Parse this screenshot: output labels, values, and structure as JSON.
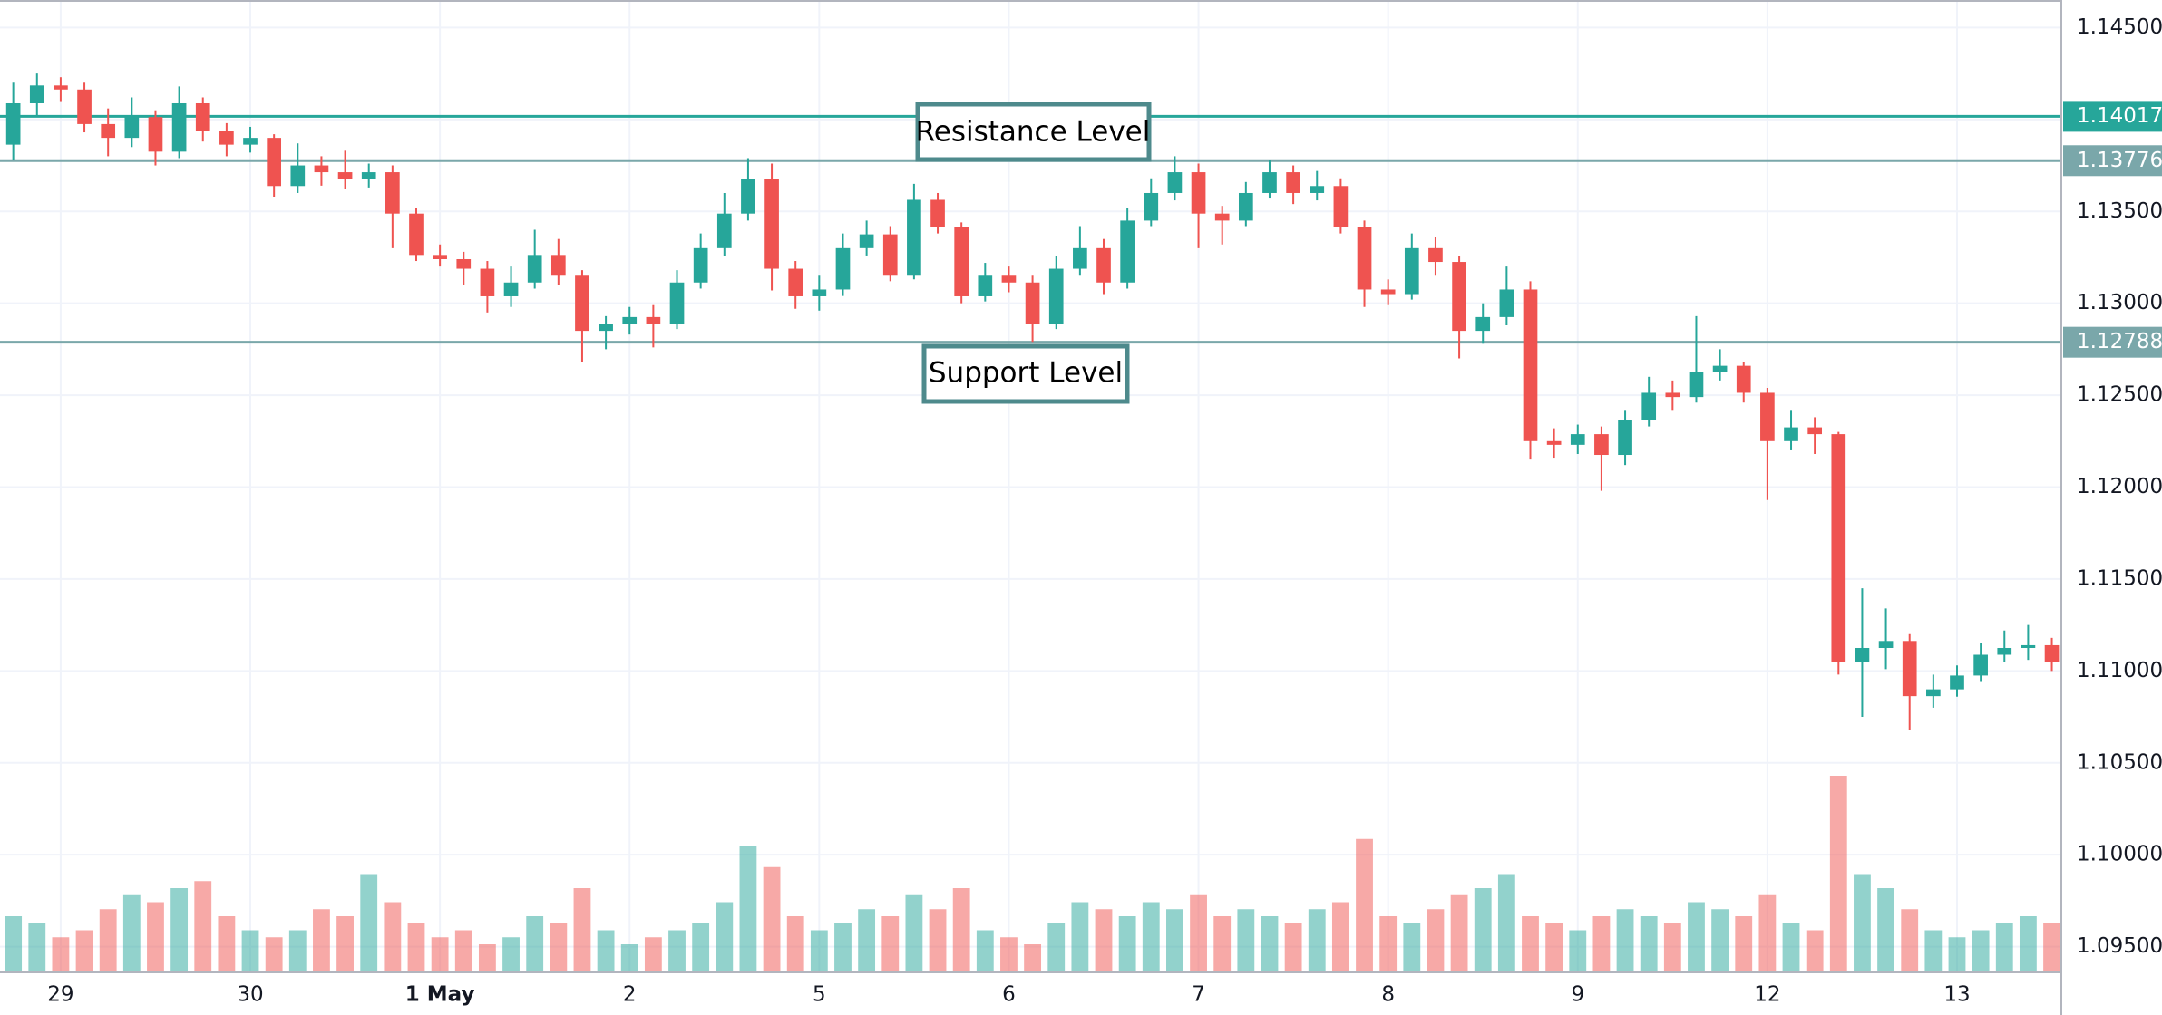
{
  "chart_data": {
    "type": "candlestick",
    "x": [
      -0.25,
      -0.125,
      0,
      0.125,
      0.25,
      0.375,
      0.5,
      0.625,
      0.75,
      0.875,
      1,
      1.125,
      1.25,
      1.375,
      1.5,
      1.625,
      1.75,
      1.875,
      2,
      2.125,
      2.25,
      2.375,
      2.5,
      2.625,
      2.75,
      2.875,
      3,
      3.125,
      3.25,
      3.375,
      3.5,
      3.625,
      3.75,
      3.875,
      4,
      4.125,
      4.25,
      4.375,
      4.5,
      4.625,
      4.75,
      4.875,
      5,
      5.125,
      5.25,
      5.375,
      5.5,
      5.625,
      5.75,
      5.875,
      6,
      6.125,
      6.25,
      6.375,
      6.5,
      6.625,
      6.75,
      6.875,
      7,
      7.125,
      7.25,
      7.375,
      7.5,
      7.625,
      7.75,
      7.875,
      8,
      8.125,
      8.25,
      8.375,
      8.5,
      8.625,
      8.75,
      8.875,
      9,
      9.125,
      9.25,
      9.375,
      9.5,
      9.625,
      9.75,
      9.875,
      10,
      10.125,
      10.25,
      10.375,
      10.5
    ],
    "open": [
      1.13863,
      1.14088,
      1.14185,
      1.14163,
      1.13975,
      1.139,
      1.14013,
      1.13825,
      1.14088,
      1.13938,
      1.13863,
      1.139,
      1.13638,
      1.1375,
      1.13713,
      1.13675,
      1.13713,
      1.13488,
      1.13263,
      1.1324,
      1.13188,
      1.13038,
      1.13113,
      1.13263,
      1.1315,
      1.1285,
      1.12888,
      1.12925,
      1.12888,
      1.13113,
      1.133,
      1.13488,
      1.13675,
      1.13188,
      1.13038,
      1.13075,
      1.133,
      1.13375,
      1.1315,
      1.13563,
      1.13413,
      1.13038,
      1.1315,
      1.13113,
      1.12888,
      1.13188,
      1.133,
      1.13113,
      1.1345,
      1.136,
      1.13713,
      1.13488,
      1.1345,
      1.136,
      1.13713,
      1.136,
      1.13638,
      1.13413,
      1.13075,
      1.1305,
      1.133,
      1.13225,
      1.1285,
      1.12925,
      1.13075,
      1.1225,
      1.1223,
      1.12288,
      1.12175,
      1.12363,
      1.12513,
      1.1249,
      1.12625,
      1.1266,
      1.12513,
      1.1225,
      1.12325,
      1.12288,
      1.1105,
      1.11125,
      1.11163,
      1.10863,
      1.109,
      1.10975,
      1.11088,
      1.11125,
      1.1114
    ],
    "high": [
      1.142,
      1.1425,
      1.1423,
      1.142,
      1.1406,
      1.1412,
      1.1405,
      1.1418,
      1.1412,
      1.1398,
      1.1396,
      1.1392,
      1.1387,
      1.138,
      1.1383,
      1.1376,
      1.1375,
      1.1352,
      1.1332,
      1.1328,
      1.1323,
      1.132,
      1.134,
      1.1335,
      1.1318,
      1.1293,
      1.1298,
      1.1299,
      1.1318,
      1.1338,
      1.136,
      1.1379,
      1.1376,
      1.1323,
      1.1315,
      1.1338,
      1.1345,
      1.1342,
      1.1365,
      1.136,
      1.1344,
      1.1322,
      1.132,
      1.1315,
      1.1326,
      1.1342,
      1.1335,
      1.1352,
      1.1368,
      1.138,
      1.1376,
      1.1353,
      1.1366,
      1.1378,
      1.1375,
      1.1372,
      1.1368,
      1.1345,
      1.1313,
      1.1338,
      1.1336,
      1.1326,
      1.13,
      1.132,
      1.1312,
      1.1232,
      1.1234,
      1.1233,
      1.1242,
      1.126,
      1.1258,
      1.1293,
      1.1275,
      1.1268,
      1.1254,
      1.1242,
      1.1238,
      1.123,
      1.1145,
      1.1134,
      1.112,
      1.1098,
      1.1103,
      1.1115,
      1.1122,
      1.1125,
      1.1118
    ],
    "low": [
      1.1378,
      1.1402,
      1.141,
      1.1393,
      1.138,
      1.1385,
      1.1375,
      1.1379,
      1.1388,
      1.138,
      1.1382,
      1.1358,
      1.136,
      1.1364,
      1.1362,
      1.1363,
      1.133,
      1.1323,
      1.132,
      1.131,
      1.1295,
      1.1298,
      1.1308,
      1.131,
      1.1268,
      1.1275,
      1.1283,
      1.1276,
      1.1286,
      1.1308,
      1.1326,
      1.1345,
      1.1307,
      1.1297,
      1.1296,
      1.1304,
      1.1326,
      1.1312,
      1.1313,
      1.1338,
      1.13,
      1.1301,
      1.1306,
      1.1279,
      1.1286,
      1.1315,
      1.1305,
      1.1308,
      1.1342,
      1.1356,
      1.133,
      1.1332,
      1.1342,
      1.1357,
      1.1354,
      1.1356,
      1.1338,
      1.1298,
      1.1299,
      1.1302,
      1.1315,
      1.127,
      1.1278,
      1.1288,
      1.1215,
      1.1216,
      1.1218,
      1.1198,
      1.1212,
      1.1233,
      1.1242,
      1.1246,
      1.1258,
      1.1246,
      1.1193,
      1.122,
      1.1218,
      1.1098,
      1.1075,
      1.1101,
      1.1068,
      1.108,
      1.1086,
      1.1094,
      1.1105,
      1.1106,
      1.11
    ],
    "close": [
      1.14088,
      1.14185,
      1.14163,
      1.13975,
      1.139,
      1.14013,
      1.13825,
      1.14088,
      1.13938,
      1.13863,
      1.139,
      1.13638,
      1.1375,
      1.13713,
      1.13675,
      1.13713,
      1.13488,
      1.13263,
      1.1324,
      1.13188,
      1.13038,
      1.13113,
      1.13263,
      1.1315,
      1.1285,
      1.12888,
      1.12925,
      1.12888,
      1.13113,
      1.133,
      1.13488,
      1.13675,
      1.13188,
      1.13038,
      1.13075,
      1.133,
      1.13375,
      1.1315,
      1.13563,
      1.13413,
      1.13038,
      1.1315,
      1.13113,
      1.12888,
      1.13188,
      1.133,
      1.13113,
      1.1345,
      1.136,
      1.13713,
      1.13488,
      1.1345,
      1.136,
      1.13713,
      1.136,
      1.13638,
      1.13413,
      1.13075,
      1.1305,
      1.133,
      1.13225,
      1.1285,
      1.12925,
      1.13075,
      1.1225,
      1.1223,
      1.12288,
      1.12175,
      1.12363,
      1.12513,
      1.1249,
      1.12625,
      1.1266,
      1.12513,
      1.1225,
      1.12325,
      1.12288,
      1.1105,
      1.11125,
      1.11163,
      1.10863,
      1.109,
      1.10975,
      1.11088,
      1.11125,
      1.1114,
      1.1105
    ],
    "volume": [
      40,
      35,
      25,
      30,
      45,
      55,
      50,
      60,
      65,
      40,
      30,
      25,
      30,
      45,
      40,
      70,
      50,
      35,
      25,
      30,
      20,
      25,
      40,
      35,
      60,
      30,
      20,
      25,
      30,
      35,
      50,
      90,
      75,
      40,
      30,
      35,
      45,
      40,
      55,
      45,
      60,
      30,
      25,
      20,
      35,
      50,
      45,
      40,
      50,
      45,
      55,
      40,
      45,
      40,
      35,
      45,
      50,
      95,
      40,
      35,
      45,
      55,
      60,
      70,
      40,
      35,
      30,
      40,
      45,
      40,
      35,
      50,
      45,
      40,
      55,
      35,
      30,
      140,
      70,
      60,
      45,
      30,
      25,
      30,
      35,
      40,
      35
    ],
    "up_color": "#26a69a",
    "down_color": "#ef5350",
    "xlim": [
      -0.32,
      10.55
    ],
    "xticks": [
      {
        "value": 0,
        "label": "29"
      },
      {
        "value": 1,
        "label": "30"
      },
      {
        "value": 2,
        "label": "1 May"
      },
      {
        "value": 3,
        "label": "2"
      },
      {
        "value": 4,
        "label": "5"
      },
      {
        "value": 5,
        "label": "6"
      },
      {
        "value": 6,
        "label": "7"
      },
      {
        "value": 7,
        "label": "8"
      },
      {
        "value": 8,
        "label": "9"
      },
      {
        "value": 9,
        "label": "12"
      },
      {
        "value": 10,
        "label": "13"
      }
    ],
    "ylim": [
      1.0936,
      1.1465
    ],
    "yticks": [
      {
        "value": 1.095,
        "label": "1.09500"
      },
      {
        "value": 1.1,
        "label": "1.10000"
      },
      {
        "value": 1.105,
        "label": "1.10500"
      },
      {
        "value": 1.11,
        "label": "1.11000"
      },
      {
        "value": 1.115,
        "label": "1.11500"
      },
      {
        "value": 1.12,
        "label": "1.12000"
      },
      {
        "value": 1.125,
        "label": "1.12500"
      },
      {
        "value": 1.13,
        "label": "1.13000"
      },
      {
        "value": 1.135,
        "label": "1.13500"
      },
      {
        "value": 1.14,
        "label": "1.14000"
      },
      {
        "value": 1.145,
        "label": "1.14500"
      }
    ],
    "grid": true,
    "levels": [
      {
        "value": 1.14017,
        "label": "1.14017",
        "color": "#26a69a"
      },
      {
        "value": 1.13776,
        "label": "1.13776",
        "color": "#7aa7aa"
      },
      {
        "value": 1.12788,
        "label": "1.12788",
        "color": "#7aa7aa"
      }
    ],
    "annotations": [
      "Resistance Level",
      "Support Level"
    ]
  }
}
